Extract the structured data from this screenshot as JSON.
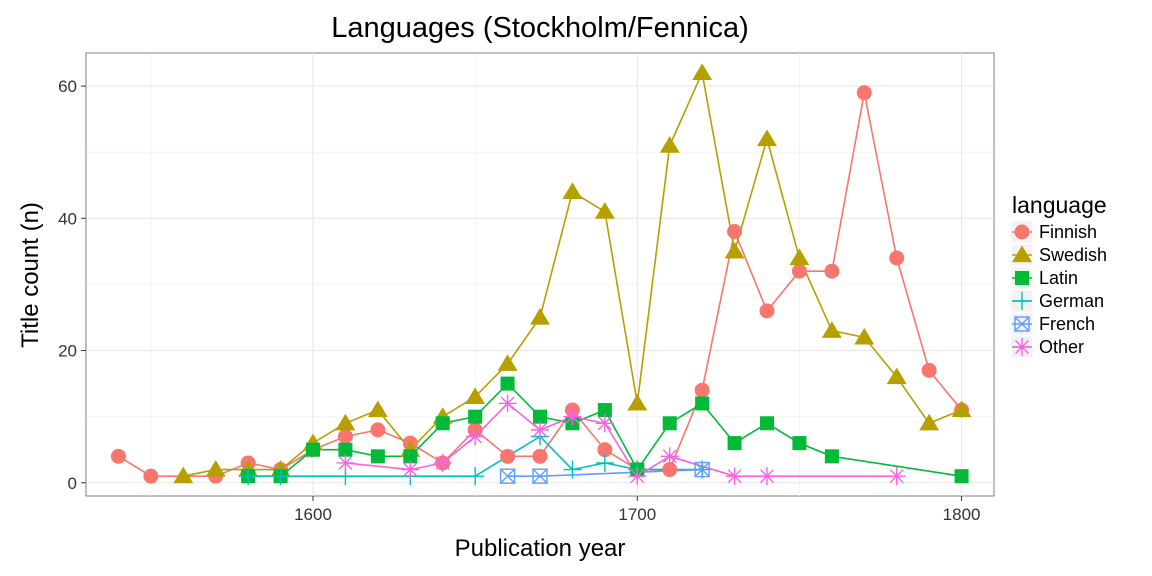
{
  "chart_data": {
    "type": "line",
    "title": "Languages (Stockholm/Fennica)",
    "xlabel": "Publication year",
    "ylabel": "Title count (n)",
    "xlim": [
      1530,
      1810
    ],
    "ylim": [
      -2,
      65
    ],
    "xticks": [
      1600,
      1700,
      1800
    ],
    "yticks": [
      0,
      20,
      40,
      60
    ],
    "grid": true,
    "legend": {
      "title": "language",
      "position": "right"
    },
    "series": [
      {
        "name": "Finnish",
        "color": "#F8766D",
        "marker": "circle",
        "x": [
          1540,
          1550,
          1570,
          1580,
          1590,
          1600,
          1610,
          1620,
          1630,
          1640,
          1650,
          1660,
          1670,
          1680,
          1690,
          1700,
          1710,
          1720,
          1730,
          1740,
          1750,
          1760,
          1770,
          1780,
          1790,
          1800
        ],
        "y": [
          4,
          1,
          1,
          3,
          2,
          5,
          7,
          8,
          6,
          3,
          8,
          4,
          4,
          11,
          5,
          2,
          2,
          14,
          38,
          26,
          32,
          32,
          59,
          34,
          17,
          11
        ]
      },
      {
        "name": "Swedish",
        "color": "#B79F00",
        "marker": "triangle",
        "x": [
          1560,
          1570,
          1580,
          1590,
          1600,
          1610,
          1620,
          1630,
          1640,
          1650,
          1660,
          1670,
          1680,
          1690,
          1700,
          1710,
          1720,
          1730,
          1740,
          1750,
          1760,
          1770,
          1780,
          1790,
          1800
        ],
        "y": [
          1,
          2,
          2,
          2,
          6,
          9,
          11,
          5,
          10,
          13,
          18,
          25,
          44,
          41,
          12,
          51,
          62,
          35,
          52,
          34,
          23,
          22,
          16,
          9,
          11
        ]
      },
      {
        "name": "Latin",
        "color": "#00BA38",
        "marker": "square",
        "x": [
          1580,
          1590,
          1600,
          1610,
          1620,
          1630,
          1640,
          1650,
          1660,
          1670,
          1680,
          1690,
          1700,
          1710,
          1720,
          1730,
          1740,
          1750,
          1760,
          1800
        ],
        "y": [
          1,
          1,
          5,
          5,
          4,
          4,
          9,
          10,
          15,
          10,
          9,
          11,
          2,
          9,
          12,
          6,
          9,
          6,
          4,
          1
        ]
      },
      {
        "name": "German",
        "color": "#00BFC4",
        "marker": "plus",
        "x": [
          1580,
          1590,
          1610,
          1630,
          1650,
          1670,
          1680,
          1690,
          1700,
          1720
        ],
        "y": [
          1,
          1,
          1,
          1,
          1,
          7,
          2,
          3,
          2,
          2
        ]
      },
      {
        "name": "French",
        "color": "#619CFF",
        "marker": "boxx",
        "x": [
          1660,
          1670,
          1720
        ],
        "y": [
          1,
          1,
          2
        ]
      },
      {
        "name": "Other",
        "color": "#F564E3",
        "marker": "asterisk",
        "x": [
          1610,
          1630,
          1640,
          1650,
          1660,
          1670,
          1680,
          1690,
          1700,
          1710,
          1730,
          1740,
          1780
        ],
        "y": [
          3,
          2,
          3,
          7,
          12,
          8,
          10,
          9,
          1,
          4,
          1,
          1,
          1
        ]
      }
    ]
  }
}
